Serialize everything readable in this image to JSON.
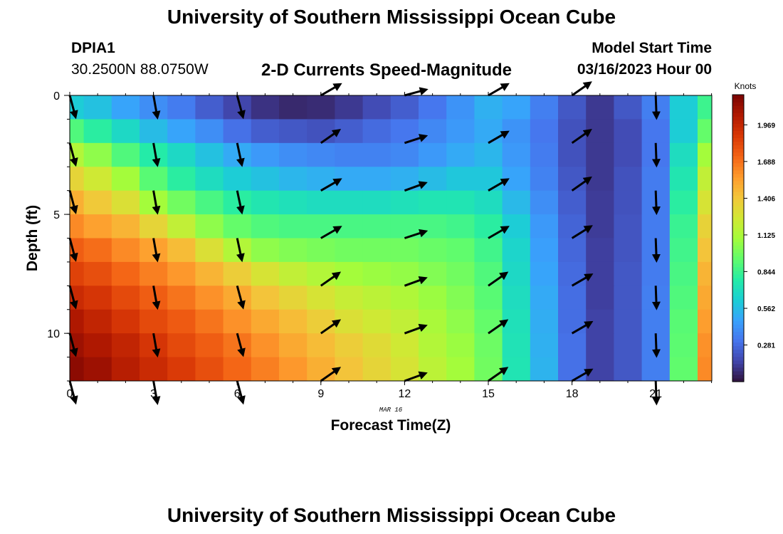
{
  "page": {
    "title_top": "University of Southern Mississippi Ocean Cube",
    "title_bottom": "University of Southern Mississippi Ocean Cube",
    "station": "DPIA1",
    "coords": "30.2500N  88.0750W",
    "subtitle": "2-D Currents Speed-Magnitude",
    "model_start_label": "Model Start Time",
    "model_start_value": "03/16/2023 Hour 00"
  },
  "chart_data": {
    "type": "heatmap",
    "xlabel": "Forecast Time(Z)",
    "ylabel": "Depth (ft)",
    "date_label": "MAR 16",
    "colorbar_label": "Knots",
    "x_ticks": [
      0,
      3,
      6,
      9,
      12,
      15,
      18,
      21
    ],
    "y_ticks": [
      0,
      5,
      10
    ],
    "colorbar_ticks": [
      "0.281",
      "0.562",
      "0.844",
      "1.125",
      "1.406",
      "1.688",
      "1.969"
    ],
    "colorbar_range": [
      0,
      2.2
    ],
    "colormap": [
      "#30123b",
      "#4145ab",
      "#4675ed",
      "#39a2fc",
      "#1bcfd4",
      "#24eca6",
      "#61fc6c",
      "#a4fc3b",
      "#d1e834",
      "#f3c63a",
      "#fe9b2d",
      "#f36315",
      "#d93806",
      "#b11901",
      "#7a0403"
    ],
    "xlim": [
      0,
      23
    ],
    "ylim": [
      0,
      12
    ],
    "hours": [
      0,
      1,
      2,
      3,
      4,
      5,
      6,
      7,
      8,
      9,
      10,
      11,
      12,
      13,
      14,
      15,
      16,
      17,
      18,
      19,
      20,
      21,
      22,
      23
    ],
    "depths": [
      0.5,
      1.5,
      2.5,
      3.5,
      4.5,
      5.5,
      6.5,
      7.5,
      8.5,
      9.5,
      10.5,
      11.5
    ],
    "speed": [
      [
        0.62,
        0.58,
        0.48,
        0.4,
        0.34,
        0.24,
        0.16,
        0.1,
        0.07,
        0.08,
        0.12,
        0.18,
        0.24,
        0.32,
        0.42,
        0.52,
        0.48,
        0.35,
        0.22,
        0.12,
        0.22,
        0.35,
        0.62,
        0.85
      ],
      [
        0.9,
        0.8,
        0.68,
        0.56,
        0.48,
        0.4,
        0.3,
        0.24,
        0.22,
        0.2,
        0.24,
        0.28,
        0.32,
        0.38,
        0.44,
        0.5,
        0.42,
        0.32,
        0.2,
        0.12,
        0.18,
        0.32,
        0.62,
        0.95
      ],
      [
        1.15,
        1.05,
        0.9,
        0.78,
        0.68,
        0.58,
        0.5,
        0.44,
        0.4,
        0.38,
        0.36,
        0.36,
        0.38,
        0.44,
        0.5,
        0.54,
        0.44,
        0.34,
        0.2,
        0.12,
        0.18,
        0.32,
        0.7,
        1.1
      ],
      [
        1.35,
        1.25,
        1.1,
        0.92,
        0.8,
        0.7,
        0.62,
        0.58,
        0.54,
        0.52,
        0.5,
        0.5,
        0.52,
        0.56,
        0.6,
        0.6,
        0.48,
        0.36,
        0.22,
        0.12,
        0.2,
        0.34,
        0.75,
        1.2
      ],
      [
        1.5,
        1.4,
        1.3,
        1.1,
        0.98,
        0.88,
        0.8,
        0.75,
        0.72,
        0.7,
        0.7,
        0.7,
        0.72,
        0.74,
        0.74,
        0.7,
        0.55,
        0.4,
        0.24,
        0.13,
        0.2,
        0.34,
        0.8,
        1.28
      ],
      [
        1.62,
        1.55,
        1.48,
        1.35,
        1.2,
        1.05,
        0.95,
        0.9,
        0.88,
        0.88,
        0.88,
        0.88,
        0.88,
        0.88,
        0.86,
        0.8,
        0.62,
        0.44,
        0.26,
        0.13,
        0.21,
        0.34,
        0.84,
        1.36
      ],
      [
        1.75,
        1.7,
        1.62,
        1.55,
        1.45,
        1.3,
        1.15,
        1.05,
        1.02,
        1.0,
        0.98,
        0.98,
        0.98,
        0.96,
        0.94,
        0.86,
        0.66,
        0.46,
        0.27,
        0.14,
        0.21,
        0.34,
        0.86,
        1.42
      ],
      [
        1.85,
        1.8,
        1.72,
        1.65,
        1.58,
        1.48,
        1.38,
        1.28,
        1.2,
        1.15,
        1.1,
        1.08,
        1.06,
        1.02,
        0.98,
        0.9,
        0.68,
        0.48,
        0.28,
        0.14,
        0.22,
        0.34,
        0.88,
        1.48
      ],
      [
        1.95,
        1.9,
        1.82,
        1.75,
        1.68,
        1.6,
        1.52,
        1.42,
        1.35,
        1.28,
        1.22,
        1.18,
        1.14,
        1.08,
        1.02,
        0.92,
        0.7,
        0.5,
        0.29,
        0.14,
        0.22,
        0.35,
        0.9,
        1.52
      ],
      [
        2.05,
        1.98,
        1.9,
        1.82,
        1.76,
        1.68,
        1.6,
        1.52,
        1.45,
        1.38,
        1.3,
        1.25,
        1.2,
        1.12,
        1.05,
        0.95,
        0.72,
        0.51,
        0.29,
        0.15,
        0.22,
        0.35,
        0.92,
        1.56
      ],
      [
        2.1,
        2.05,
        1.98,
        1.9,
        1.82,
        1.75,
        1.68,
        1.6,
        1.52,
        1.45,
        1.38,
        1.32,
        1.25,
        1.15,
        1.08,
        0.97,
        0.73,
        0.52,
        0.3,
        0.15,
        0.22,
        0.35,
        0.93,
        1.6
      ],
      [
        2.15,
        2.1,
        2.02,
        1.95,
        1.88,
        1.8,
        1.72,
        1.65,
        1.58,
        1.5,
        1.42,
        1.35,
        1.28,
        1.18,
        1.1,
        0.98,
        0.74,
        0.53,
        0.3,
        0.15,
        0.22,
        0.35,
        0.94,
        1.62
      ]
    ],
    "vectors": {
      "hours": [
        0,
        3,
        6,
        9,
        12,
        15,
        18,
        21
      ],
      "depths": [
        0,
        2,
        4,
        6,
        8,
        10,
        12
      ],
      "direction_deg": [
        [
          165,
          170,
          165,
          60,
          75,
          60,
          55,
          178
        ],
        [
          165,
          170,
          168,
          55,
          72,
          60,
          55,
          178
        ],
        [
          165,
          170,
          168,
          60,
          70,
          60,
          55,
          178
        ],
        [
          165,
          170,
          168,
          60,
          72,
          60,
          58,
          178
        ],
        [
          165,
          170,
          165,
          55,
          70,
          55,
          60,
          178
        ],
        [
          165,
          170,
          165,
          55,
          70,
          55,
          60,
          178
        ],
        [
          165,
          170,
          165,
          55,
          70,
          55,
          60,
          178
        ]
      ]
    }
  }
}
